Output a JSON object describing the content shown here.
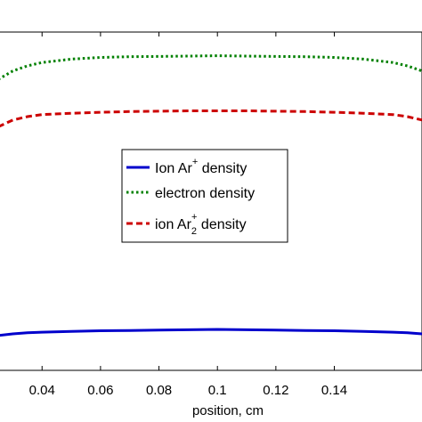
{
  "chart_data": {
    "type": "line",
    "xlabel": "position, cm",
    "ylabel": "",
    "xlim": [
      0.025,
      0.17
    ],
    "ylim": [
      0,
      1
    ],
    "x_ticks": [
      0.04,
      0.06,
      0.08,
      0.1,
      0.12,
      0.14
    ],
    "x_tick_labels": [
      "0.04",
      "0.06",
      "0.08",
      "0.1",
      "0.12",
      "0.14"
    ],
    "grid": false,
    "legend_position": "center",
    "x": [
      0.025,
      0.03,
      0.035,
      0.04,
      0.05,
      0.06,
      0.07,
      0.08,
      0.09,
      0.1,
      0.11,
      0.12,
      0.13,
      0.14,
      0.15,
      0.16,
      0.165,
      0.17
    ],
    "series": [
      {
        "name": "Ion Ar",
        "name_sup": "+",
        "name_sub": "",
        "name_suffix": " density",
        "color": "#0000cc",
        "dash": "solid",
        "values": [
          0.103,
          0.108,
          0.111,
          0.113,
          0.115,
          0.117,
          0.118,
          0.119,
          0.12,
          0.121,
          0.12,
          0.119,
          0.118,
          0.117,
          0.115,
          0.113,
          0.111,
          0.108
        ]
      },
      {
        "name": "electron density",
        "name_sup": "",
        "name_sub": "",
        "name_suffix": "",
        "color": "#008000",
        "dash": "dot",
        "values": [
          0.86,
          0.885,
          0.9,
          0.91,
          0.92,
          0.925,
          0.927,
          0.928,
          0.929,
          0.93,
          0.929,
          0.928,
          0.927,
          0.925,
          0.92,
          0.91,
          0.9,
          0.885
        ]
      },
      {
        "name": "ion Ar",
        "name_sup": "+",
        "name_sub": "2",
        "name_suffix": " density",
        "color": "#cc0000",
        "dash": "dash",
        "values": [
          0.72,
          0.74,
          0.75,
          0.756,
          0.76,
          0.763,
          0.765,
          0.766,
          0.767,
          0.767,
          0.767,
          0.766,
          0.765,
          0.763,
          0.76,
          0.756,
          0.75,
          0.74
        ]
      }
    ]
  }
}
